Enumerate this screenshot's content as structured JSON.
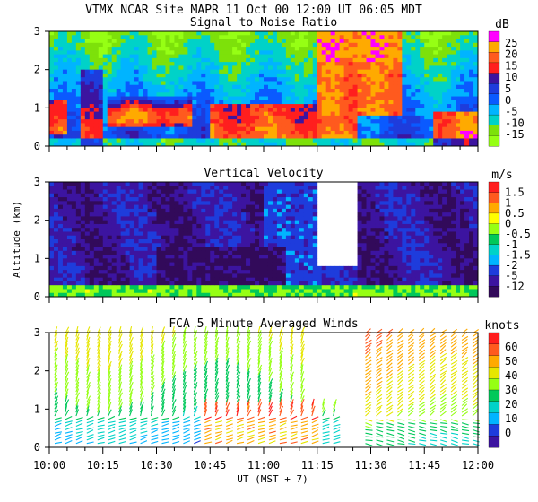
{
  "header": "VTMX   NCAR Site   MAPR 11 Oct 00   12:00 UT   06:05   MDT",
  "chart_data": [
    {
      "type": "heatmap",
      "title": "Signal to Noise Ratio",
      "units": "dB",
      "ylabel": "",
      "yticks": [
        "0",
        "1",
        "2",
        "3"
      ],
      "ylim": [
        0,
        3
      ],
      "colorbar": {
        "labels": [
          "25",
          "20",
          "15",
          "10",
          "5",
          "0",
          "-5",
          "-10",
          "-15"
        ],
        "colors": [
          "#ff00ff",
          "#ffaa00",
          "#ff5a1e",
          "#ff1e1e",
          "#3c14a0",
          "#1e3cdc",
          "#0a5aff",
          "#00b4ff",
          "#00d2c8",
          "#7de10a",
          "#96ff14"
        ]
      }
    },
    {
      "type": "heatmap",
      "title": "Vertical Velocity",
      "units": "m/s",
      "ylabel": "Altitude (km)",
      "yticks": [
        "0",
        "1",
        "2",
        "3"
      ],
      "ylim": [
        0,
        3
      ],
      "colorbar": {
        "labels": [
          "1.5",
          "1",
          "0.5",
          "0",
          "-0.5",
          "-1",
          "-1.5",
          "-2",
          "-5",
          "-12"
        ],
        "colors": [
          "#ff1e1e",
          "#ff5a1e",
          "#ffaa00",
          "#ffff00",
          "#96ff14",
          "#00c85a",
          "#00d2c8",
          "#00b4ff",
          "#1e3cdc",
          "#3c14a0",
          "#320a5a"
        ]
      }
    },
    {
      "type": "vector",
      "title": "FCA 5 Minute Averaged Winds",
      "units": "knots",
      "ylabel": "",
      "yticks": [
        "0",
        "1",
        "2",
        "3"
      ],
      "ylim": [
        0,
        3
      ],
      "colorbar": {
        "labels": [
          "60",
          "50",
          "40",
          "30",
          "20",
          "10",
          "0"
        ],
        "colors": [
          "#ff1e1e",
          "#ff5a1e",
          "#ffaa00",
          "#e6e600",
          "#96ff14",
          "#00c85a",
          "#00d2c8",
          "#00b4ff",
          "#1e3cdc",
          "#3c14a0"
        ]
      }
    }
  ],
  "xaxis": {
    "ticks": [
      "10:00",
      "10:15",
      "10:30",
      "10:45",
      "11:00",
      "11:15",
      "11:30",
      "11:45",
      "12:00"
    ],
    "label": "UT   (MST + 7)"
  }
}
